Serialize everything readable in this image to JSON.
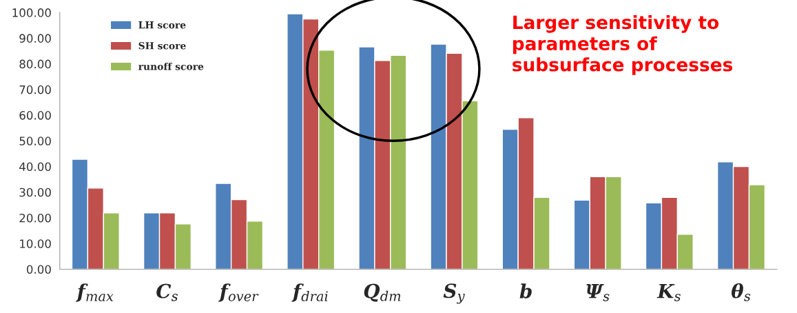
{
  "chart_data": {
    "type": "bar",
    "categories": [
      "f$_{max}$",
      "C$_{s}$",
      "f$_{over}$",
      "f$_{drai}$",
      "Q$_{dm}$",
      "S$_{y}$",
      "b",
      "Ψ$_{s}$",
      "K$_{s}$",
      "θ$_{s}$"
    ],
    "series": [
      {
        "name": "LH score",
        "color": "#4f81bd",
        "values": [
          42.8,
          21.9,
          33.4,
          99.5,
          86.6,
          87.7,
          54.5,
          26.9,
          25.8,
          41.8
        ]
      },
      {
        "name": "SH score",
        "color": "#c0504d",
        "values": [
          31.6,
          21.9,
          27.1,
          97.5,
          81.3,
          84.1,
          59.0,
          36.0,
          28.0,
          40.0
        ]
      },
      {
        "name": "runoff score",
        "color": "#9bbb59",
        "values": [
          21.9,
          17.6,
          18.7,
          85.3,
          83.3,
          65.6,
          28.0,
          36.0,
          13.6,
          32.9
        ]
      }
    ],
    "ylim": [
      0,
      100
    ],
    "yticks": [
      {
        "value": 0,
        "label": "0.00"
      },
      {
        "value": 10,
        "label": "10.00"
      },
      {
        "value": 20,
        "label": "20.00"
      },
      {
        "value": 30,
        "label": "30.00"
      },
      {
        "value": 40,
        "label": "40.00"
      },
      {
        "value": 50,
        "label": "50.00"
      },
      {
        "value": 60,
        "label": "60.00"
      },
      {
        "value": 70,
        "label": "70.00"
      },
      {
        "value": 80,
        "label": "80.00"
      },
      {
        "value": 90,
        "label": "90.00"
      },
      {
        "value": 100,
        "label": "100.00"
      }
    ],
    "annotations": [
      "Larger sensitivity to\nparameters of\nsubsurface processes"
    ],
    "legend": "top left",
    "grid": false
  }
}
